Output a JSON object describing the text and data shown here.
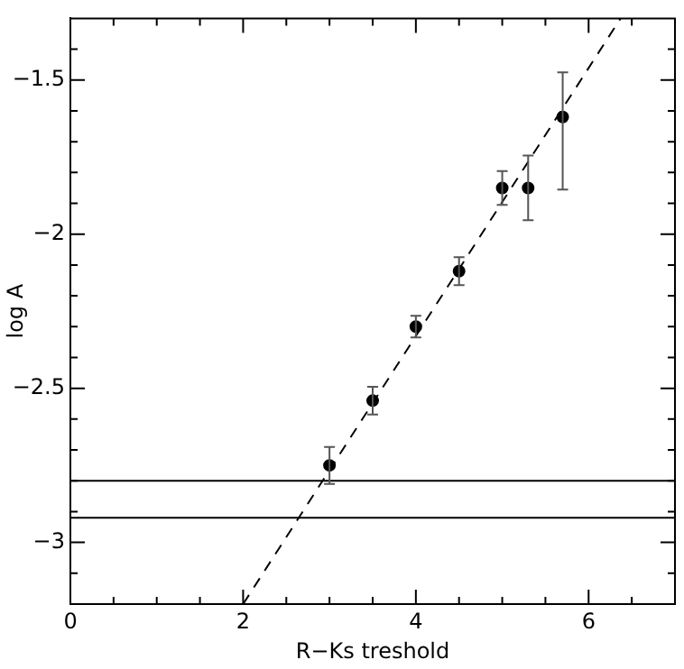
{
  "chart_data": {
    "type": "scatter",
    "xlabel": "R−Ks treshold",
    "ylabel": "log A",
    "xlim": [
      0,
      7
    ],
    "ylim": [
      -3.2,
      -1.3
    ],
    "xticks": [
      0,
      {
        "value": 0.5,
        "label": null
      },
      {
        "value": 1,
        "label": null
      },
      {
        "value": 1.5,
        "label": null
      },
      2,
      {
        "value": 2.5,
        "label": null
      },
      {
        "value": 3,
        "label": null
      },
      {
        "value": 3.5,
        "label": null
      },
      4,
      {
        "value": 4.5,
        "label": null
      },
      {
        "value": 5,
        "label": null
      },
      {
        "value": 5.5,
        "label": null
      },
      6,
      {
        "value": 6.5,
        "label": null
      }
    ],
    "yticks": [
      {
        "value": -3.1,
        "label": null
      },
      -3,
      {
        "value": -2.9,
        "label": null
      },
      {
        "value": -2.8,
        "label": null
      },
      {
        "value": -2.7,
        "label": null
      },
      {
        "value": -2.6,
        "label": null
      },
      -2.5,
      {
        "value": -2.4,
        "label": null
      },
      {
        "value": -2.3,
        "label": null
      },
      {
        "value": -2.2,
        "label": null
      },
      {
        "value": -2.1,
        "label": null
      },
      -2,
      {
        "value": -1.9,
        "label": null
      },
      {
        "value": -1.8,
        "label": null
      },
      {
        "value": -1.7,
        "label": null
      },
      {
        "value": -1.6,
        "label": null
      },
      -1.5,
      {
        "value": -1.4,
        "label": null
      }
    ],
    "grid": false,
    "legend": false,
    "marker": "circle",
    "series": [
      {
        "color": "#000000",
        "x": [
          3,
          3.5,
          4,
          4.5,
          5,
          5.3,
          5.7
        ],
        "values": [
          -2.75,
          -2.54,
          -2.3,
          -2.12,
          -1.85,
          -1.85,
          -1.62
        ],
        "errors": [
          0.06,
          0.045,
          0.035,
          0.045,
          0.055,
          0.105,
          [
            -1.855,
            -1.475
          ]
        ]
      },
      {
        "type": "line",
        "color": "#000000",
        "line_style": "dashed",
        "marker": "none",
        "x": [
          2,
          6.37
        ],
        "values": [
          -3.2,
          -1.3
        ]
      }
    ],
    "ref_lines": [
      {
        "axis": "y",
        "value": -2.8,
        "color": "#000000"
      },
      {
        "axis": "y",
        "value": -2.92,
        "color": "#000000"
      }
    ]
  }
}
